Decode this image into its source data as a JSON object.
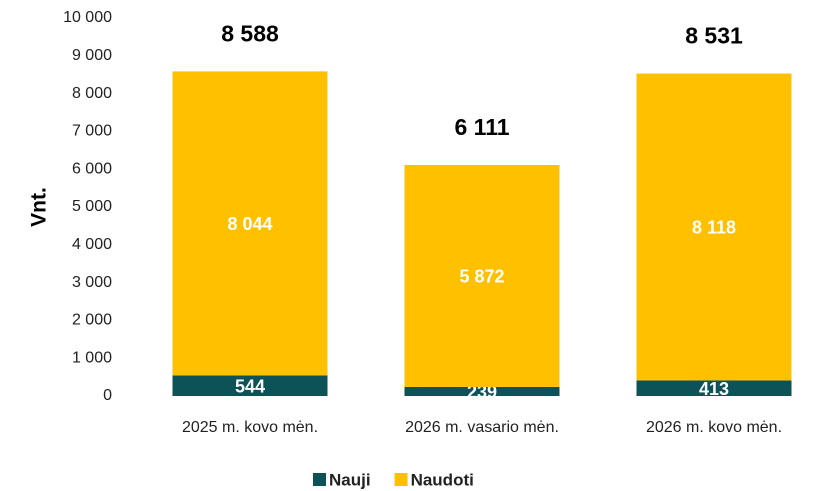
{
  "chart_data": {
    "type": "stacked_bar",
    "y_label": "Vnt.",
    "categories": [
      "2025 m. kovo mėn.",
      "2026 m. vasario mėn.",
      "2026 m. kovo mėn."
    ],
    "series": [
      {
        "name": "Nauji",
        "color": "#0d5257",
        "values": [
          544,
          239,
          413
        ],
        "value_labels": [
          "544",
          "239",
          "413"
        ]
      },
      {
        "name": "Naudoti",
        "color": "#ffc000",
        "values": [
          8044,
          5872,
          8118
        ],
        "value_labels": [
          "8 044",
          "5 872",
          "8 118"
        ]
      }
    ],
    "totals": [
      8588,
      6111,
      8531
    ],
    "total_labels": [
      "8 588",
      "6 111",
      "8 531"
    ],
    "ylim": [
      0,
      10000
    ],
    "yticks": [
      0,
      {
        "value": 1000,
        "label": "1 000"
      },
      {
        "value": 2000,
        "label": "2 000"
      },
      {
        "value": 3000,
        "label": "3 000"
      },
      {
        "value": 4000,
        "label": "4 000"
      },
      {
        "value": 5000,
        "label": "5 000"
      },
      {
        "value": 6000,
        "label": "6 000"
      },
      {
        "value": 7000,
        "label": "7 000"
      },
      {
        "value": 8000,
        "label": "8 000"
      },
      {
        "value": 9000,
        "label": "9 000"
      },
      {
        "value": 10000,
        "label": "10 000"
      }
    ],
    "grid": false,
    "legend": "bottom"
  }
}
